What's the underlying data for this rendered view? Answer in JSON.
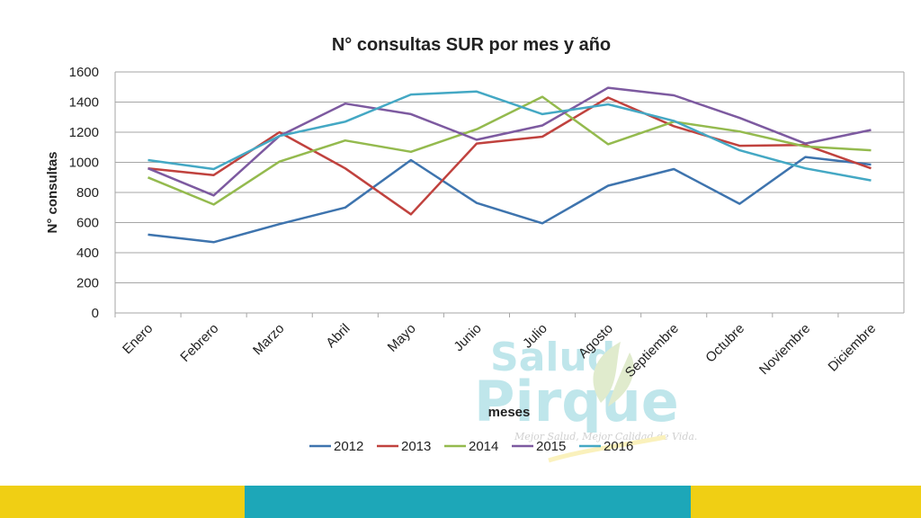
{
  "watermark": {
    "line1": "Salud",
    "line2": "Pirque",
    "slogan": "Mejor Salud, Mejor Calidad de Vida."
  },
  "footer": {
    "colors": [
      "#f0cf14",
      "#1da7b8",
      "#f0cf14"
    ]
  },
  "chart_data": {
    "type": "line",
    "title": "N° consultas SUR por mes y año",
    "xlabel": "meses",
    "ylabel": "N° consultas",
    "ylim": [
      0,
      1600
    ],
    "yticks": [
      0,
      200,
      400,
      600,
      800,
      1000,
      1200,
      1400,
      1600
    ],
    "grid": true,
    "legend_position": "bottom",
    "categories": [
      "Enero",
      "Febrero",
      "Marzo",
      "Abril",
      "Mayo",
      "Junio",
      "Julio",
      "Agosto",
      "Septiembre",
      "Octubre",
      "Noviembre",
      "Diciembre"
    ],
    "series": [
      {
        "name": "2012",
        "color": "#3e74ae",
        "values": [
          520,
          470,
          590,
          700,
          1015,
          730,
          595,
          845,
          955,
          725,
          1035,
          985
        ]
      },
      {
        "name": "2013",
        "color": "#c0423e",
        "values": [
          960,
          915,
          1200,
          960,
          655,
          1125,
          1170,
          1430,
          1240,
          1110,
          1115,
          960
        ]
      },
      {
        "name": "2014",
        "color": "#94ba4e",
        "values": [
          900,
          720,
          1005,
          1145,
          1070,
          1220,
          1435,
          1120,
          1270,
          1205,
          1105,
          1080
        ]
      },
      {
        "name": "2015",
        "color": "#7d5aa0",
        "values": [
          960,
          780,
          1175,
          1390,
          1320,
          1150,
          1245,
          1495,
          1445,
          1295,
          1125,
          1215
        ]
      },
      {
        "name": "2016",
        "color": "#44a8c4",
        "values": [
          1015,
          955,
          1175,
          1270,
          1450,
          1470,
          1320,
          1385,
          1275,
          1080,
          960,
          880
        ]
      }
    ]
  }
}
